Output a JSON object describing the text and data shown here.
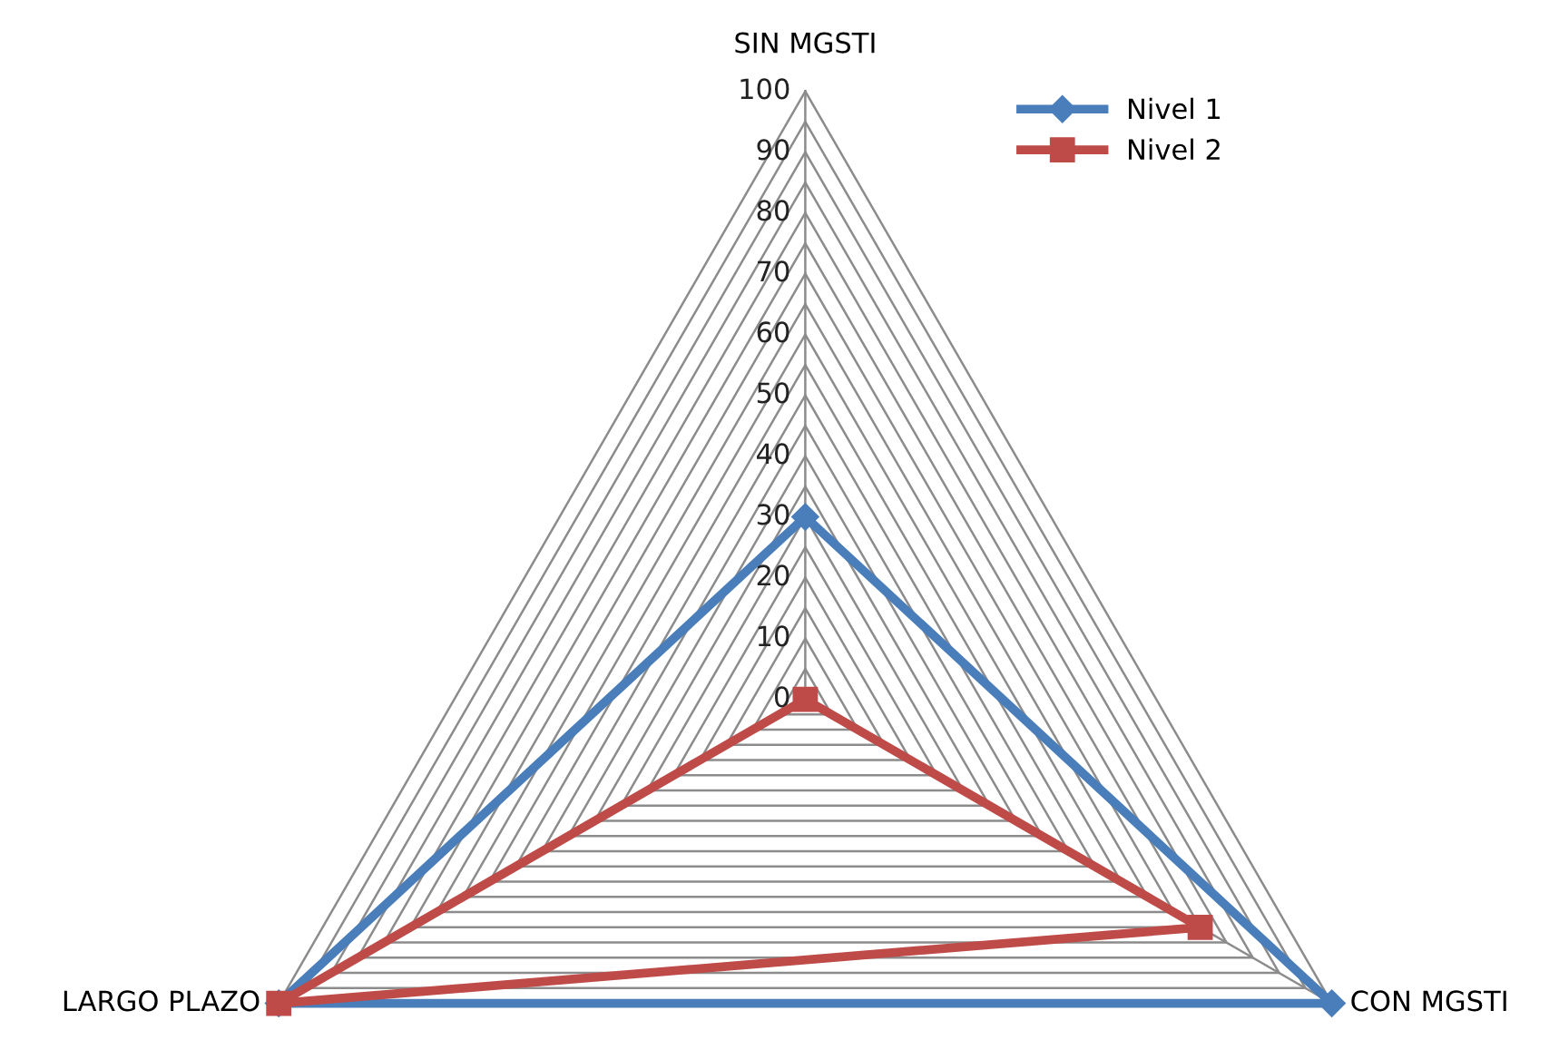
{
  "chart_data": {
    "type": "radar",
    "categories": [
      "SIN MGSTI",
      "CON MGSTI",
      "LARGO PLAZO"
    ],
    "series": [
      {
        "name": "Nivel 1",
        "color": "#4a7ebb",
        "values": [
          30,
          100,
          100
        ],
        "marker": "diamond"
      },
      {
        "name": "Nivel 2",
        "color": "#be4b48",
        "values": [
          0,
          75,
          100
        ],
        "marker": "square"
      }
    ],
    "ylim": [
      0,
      100
    ],
    "yticks": [
      0,
      10,
      20,
      30,
      40,
      50,
      60,
      70,
      80,
      90,
      100
    ],
    "grid": true,
    "legend": "top right",
    "line_style": "solid"
  }
}
